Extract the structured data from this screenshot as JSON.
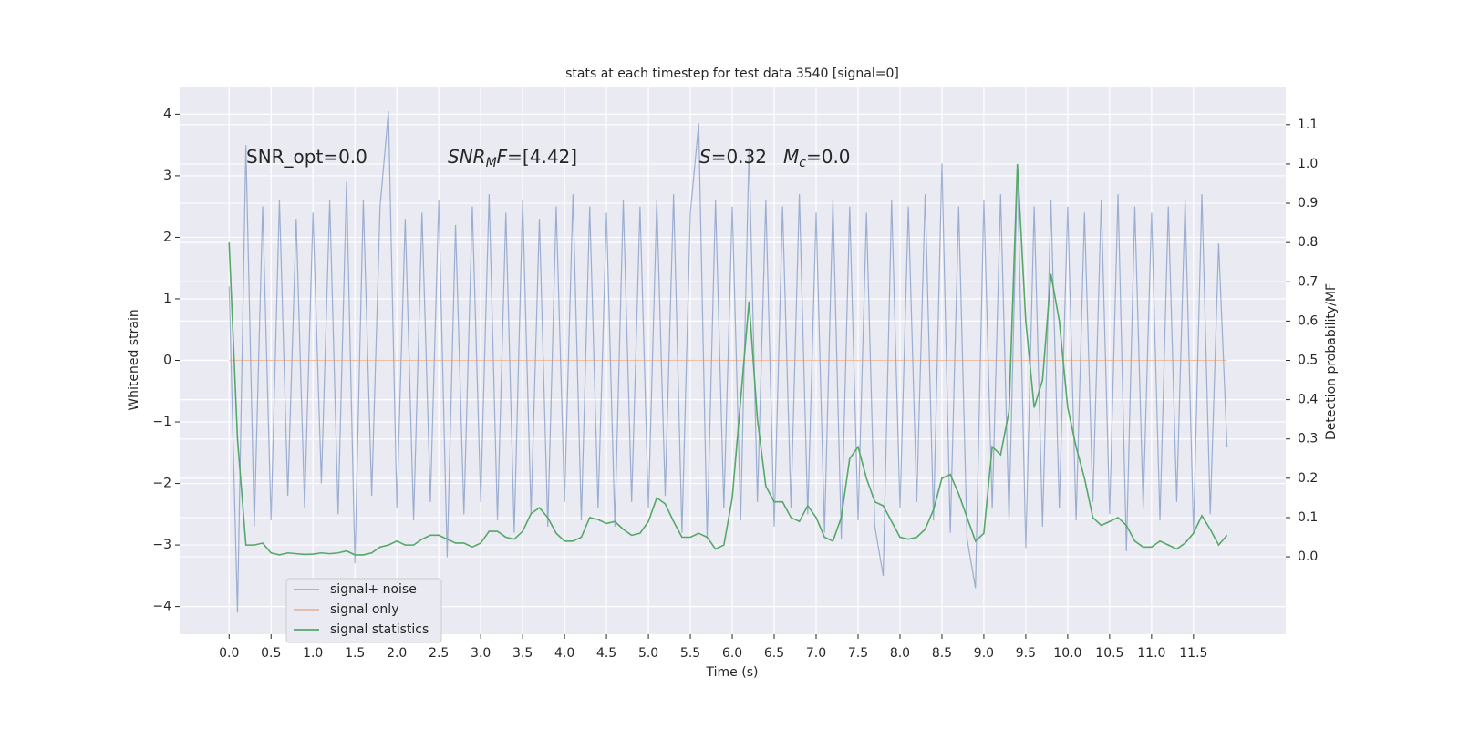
{
  "chart_data": {
    "type": "line",
    "title": "stats at each timestep for test data 3540 [signal=0]",
    "xlabel": "Time (s)",
    "ylabel": "Whitened strain",
    "y2label": "Detection probability/MF",
    "annotations": [
      [
        {
          "text": "SNR_opt=0.0",
          "style": "normal"
        }
      ],
      [
        {
          "text": "SNR",
          "style": "italic"
        },
        {
          "text": "M",
          "style": "sub"
        },
        {
          "text": "F",
          "style": "italic"
        },
        {
          "text": "=[4.42]",
          "style": "normal"
        }
      ],
      [
        {
          "text": "S",
          "style": "italic"
        },
        {
          "text": "=0.32",
          "style": "normal"
        }
      ],
      [
        {
          "text": "M",
          "style": "italic"
        },
        {
          "text": "c",
          "style": "sub"
        },
        {
          "text": "=0.0",
          "style": "normal"
        }
      ]
    ],
    "x": [
      0,
      0.1,
      0.2,
      0.3,
      0.4,
      0.5,
      0.6,
      0.7,
      0.8,
      0.9,
      1,
      1.1,
      1.2,
      1.3,
      1.4,
      1.5,
      1.6,
      1.7,
      1.8,
      1.9,
      2,
      2.1,
      2.2,
      2.3,
      2.4,
      2.5,
      2.6,
      2.7,
      2.8,
      2.9,
      3,
      3.1,
      3.2,
      3.3,
      3.4,
      3.5,
      3.6,
      3.7,
      3.8,
      3.9,
      4,
      4.1,
      4.2,
      4.3,
      4.4,
      4.5,
      4.6,
      4.7,
      4.8,
      4.9,
      5,
      5.1,
      5.2,
      5.3,
      5.4,
      5.5,
      5.6,
      5.7,
      5.8,
      5.9,
      6,
      6.1,
      6.2,
      6.3,
      6.4,
      6.5,
      6.6,
      6.7,
      6.8,
      6.9,
      7,
      7.1,
      7.2,
      7.3,
      7.4,
      7.5,
      7.6,
      7.7,
      7.8,
      7.9,
      8,
      8.1,
      8.2,
      8.3,
      8.4,
      8.5,
      8.6,
      8.7,
      8.8,
      8.9,
      9,
      9.1,
      9.2,
      9.3,
      9.4,
      9.5,
      9.6,
      9.7,
      9.8,
      9.9,
      10,
      10.1,
      10.2,
      10.3,
      10.4,
      10.5,
      10.6,
      10.7,
      10.8,
      10.9,
      11,
      11.1,
      11.2,
      11.3,
      11.4,
      11.5,
      11.6,
      11.7,
      11.8,
      11.9
    ],
    "series": [
      {
        "name": "signal+ noise",
        "color": "#4c72b0",
        "axis": "y",
        "values": [
          1.2,
          -4.1,
          3.5,
          -2.7,
          2.5,
          -2.6,
          2.6,
          -2.2,
          2.3,
          -2.4,
          2.4,
          -2.0,
          2.6,
          -2.5,
          2.9,
          -3.3,
          2.6,
          -2.2,
          2.5,
          4.05,
          -2.4,
          2.3,
          -2.6,
          2.4,
          -2.3,
          2.6,
          -3.2,
          2.2,
          -2.5,
          2.5,
          -2.3,
          2.7,
          -2.6,
          2.4,
          -2.8,
          2.6,
          -2.5,
          2.3,
          -2.7,
          2.5,
          -2.3,
          2.7,
          -2.6,
          2.5,
          -2.4,
          2.4,
          -2.7,
          2.6,
          -2.3,
          2.5,
          -2.4,
          2.6,
          -2.2,
          2.7,
          -2.8,
          2.4,
          3.85,
          -2.9,
          2.6,
          -2.4,
          2.5,
          -2.6,
          3.45,
          -2.3,
          2.6,
          -2.7,
          2.5,
          -2.4,
          2.7,
          -2.5,
          2.4,
          -2.8,
          2.6,
          -2.9,
          2.5,
          -2.6,
          2.4,
          -2.7,
          -3.5,
          2.6,
          -2.4,
          2.5,
          -2.3,
          2.7,
          -2.6,
          3.2,
          -2.8,
          2.5,
          -2.9,
          -3.7,
          2.6,
          -2.4,
          2.7,
          -2.6,
          3.15,
          -3.05,
          2.5,
          -2.7,
          2.6,
          -2.4,
          2.5,
          -2.6,
          2.4,
          -2.3,
          2.6,
          -2.5,
          2.7,
          -3.1,
          2.5,
          -2.4,
          2.4,
          -2.6,
          2.5,
          -2.3,
          2.6,
          -2.8,
          2.7,
          -2.5,
          1.9,
          -1.4
        ]
      },
      {
        "name": "signal only",
        "color": "#dd8452",
        "axis": "y",
        "values": [
          0,
          0,
          0,
          0,
          0,
          0,
          0,
          0,
          0,
          0,
          0,
          0,
          0,
          0,
          0,
          0,
          0,
          0,
          0,
          0,
          0,
          0,
          0,
          0,
          0,
          0,
          0,
          0,
          0,
          0,
          0,
          0,
          0,
          0,
          0,
          0,
          0,
          0,
          0,
          0,
          0,
          0,
          0,
          0,
          0,
          0,
          0,
          0,
          0,
          0,
          0,
          0,
          0,
          0,
          0,
          0,
          0,
          0,
          0,
          0,
          0,
          0,
          0,
          0,
          0,
          0,
          0,
          0,
          0,
          0,
          0,
          0,
          0,
          0,
          0,
          0,
          0,
          0,
          0,
          0,
          0,
          0,
          0,
          0,
          0,
          0,
          0,
          0,
          0,
          0,
          0,
          0,
          0,
          0,
          0,
          0,
          0,
          0,
          0,
          0,
          0,
          0,
          0,
          0,
          0,
          0,
          0,
          0,
          0,
          0,
          0,
          0,
          0,
          0,
          0,
          0,
          0,
          0,
          0,
          0
        ]
      },
      {
        "name": "signal statistics",
        "color": "#55a868",
        "axis": "y2",
        "values": [
          0.8,
          0.3,
          0.03,
          0.03,
          0.035,
          0.01,
          0.005,
          0.01,
          0.008,
          0.006,
          0.007,
          0.01,
          0.008,
          0.01,
          0.015,
          0.005,
          0.005,
          0.01,
          0.025,
          0.03,
          0.04,
          0.03,
          0.03,
          0.045,
          0.055,
          0.055,
          0.045,
          0.035,
          0.035,
          0.025,
          0.035,
          0.065,
          0.065,
          0.05,
          0.045,
          0.065,
          0.11,
          0.125,
          0.1,
          0.06,
          0.04,
          0.04,
          0.05,
          0.1,
          0.095,
          0.085,
          0.09,
          0.07,
          0.055,
          0.06,
          0.09,
          0.15,
          0.135,
          0.09,
          0.05,
          0.05,
          0.06,
          0.05,
          0.02,
          0.03,
          0.15,
          0.4,
          0.65,
          0.35,
          0.18,
          0.14,
          0.14,
          0.1,
          0.09,
          0.13,
          0.1,
          0.05,
          0.04,
          0.1,
          0.25,
          0.28,
          0.2,
          0.14,
          0.13,
          0.09,
          0.05,
          0.045,
          0.05,
          0.07,
          0.12,
          0.2,
          0.21,
          0.16,
          0.1,
          0.04,
          0.06,
          0.28,
          0.26,
          0.37,
          1.0,
          0.6,
          0.38,
          0.45,
          0.72,
          0.6,
          0.38,
          0.28,
          0.2,
          0.1,
          0.08,
          0.09,
          0.1,
          0.08,
          0.04,
          0.025,
          0.025,
          0.04,
          0.03,
          0.02,
          0.035,
          0.06,
          0.105,
          0.07,
          0.03,
          0.055
        ]
      }
    ],
    "xlim": [
      -0.59,
      12.6
    ],
    "ylim": [
      -4.45,
      4.45
    ],
    "y2lim": [
      -0.197,
      1.197
    ],
    "xticks": [
      {
        "value": 0,
        "label": "0.0"
      },
      0.5,
      {
        "value": 1,
        "label": "1.0"
      },
      1.5,
      {
        "value": 2,
        "label": "2.0"
      },
      2.5,
      {
        "value": 3,
        "label": "3.0"
      },
      3.5,
      {
        "value": 4,
        "label": "4.0"
      },
      4.5,
      {
        "value": 5,
        "label": "5.0"
      },
      5.5,
      {
        "value": 6,
        "label": "6.0"
      },
      6.5,
      {
        "value": 7,
        "label": "7.0"
      },
      7.5,
      {
        "value": 8,
        "label": "8.0"
      },
      8.5,
      {
        "value": 9,
        "label": "9.0"
      },
      9.5,
      {
        "value": 10,
        "label": "10.0"
      },
      10.5,
      {
        "value": 11,
        "label": "11.0"
      },
      11.5
    ],
    "yticks": [
      {
        "value": -4,
        "label": "−4"
      },
      {
        "value": -3,
        "label": "−3"
      },
      {
        "value": -2,
        "label": "−2"
      },
      {
        "value": -1,
        "label": "−1"
      },
      0,
      1,
      2,
      3,
      4
    ],
    "y2ticks": [
      {
        "value": 0,
        "label": "0.0"
      },
      0.1,
      0.2,
      0.3,
      0.4,
      0.5,
      0.6,
      0.7,
      0.8,
      0.9,
      {
        "value": 1,
        "label": "1.0"
      },
      1.1
    ],
    "grid": true,
    "legend": "lower left"
  }
}
